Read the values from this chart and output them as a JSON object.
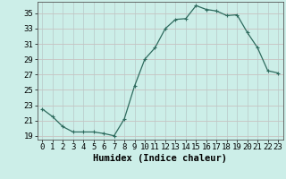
{
  "x": [
    0,
    1,
    2,
    3,
    4,
    5,
    6,
    7,
    8,
    9,
    10,
    11,
    12,
    13,
    14,
    15,
    16,
    17,
    18,
    19,
    20,
    21,
    22,
    23
  ],
  "y": [
    22.5,
    21.5,
    20.2,
    19.5,
    19.5,
    19.5,
    19.3,
    19.0,
    21.2,
    25.5,
    29.0,
    30.5,
    33.0,
    34.2,
    34.3,
    36.0,
    35.5,
    35.3,
    34.7,
    34.8,
    32.5,
    30.5,
    27.5,
    27.2
  ],
  "line_color": "#2e6b5e",
  "marker": "+",
  "marker_size": 3,
  "marker_linewidth": 0.8,
  "linewidth": 0.9,
  "bg_color": "#cceee8",
  "grid_color_h": "#c8b8b8",
  "grid_color_v": "#b8c8c8",
  "xlabel": "Humidex (Indice chaleur)",
  "xlim": [
    -0.5,
    23.5
  ],
  "ylim": [
    18.5,
    36.5
  ],
  "yticks": [
    19,
    21,
    23,
    25,
    27,
    29,
    31,
    33,
    35
  ],
  "xticks": [
    0,
    1,
    2,
    3,
    4,
    5,
    6,
    7,
    8,
    9,
    10,
    11,
    12,
    13,
    14,
    15,
    16,
    17,
    18,
    19,
    20,
    21,
    22,
    23
  ],
  "xlabel_fontsize": 7.5,
  "tick_fontsize": 6.5
}
